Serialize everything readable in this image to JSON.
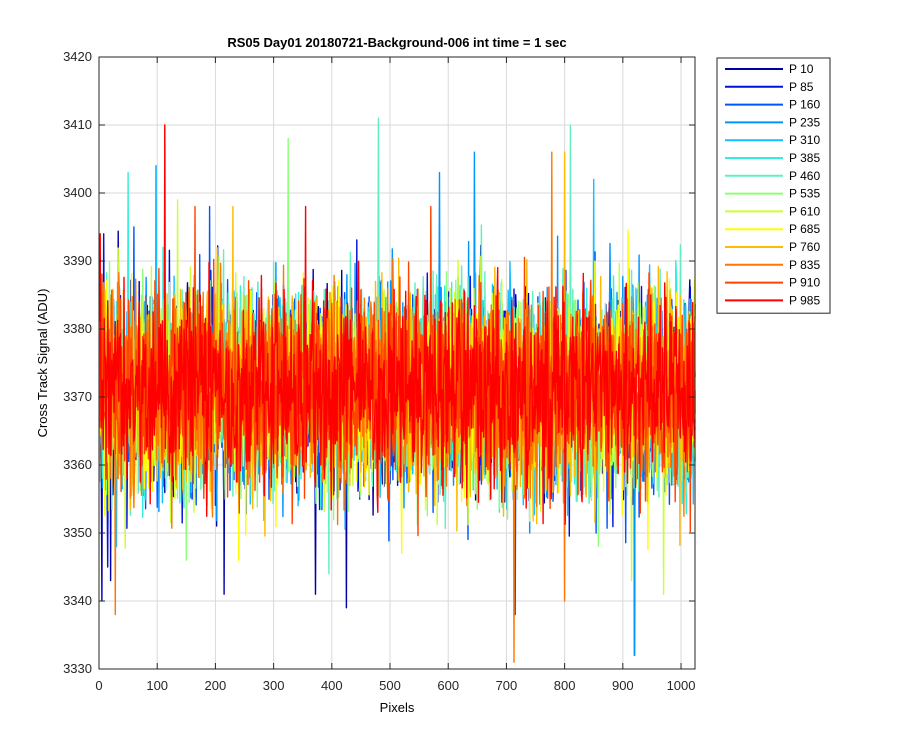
{
  "chart_data": {
    "type": "line",
    "title": "RS05 Day01 20180721-Background-006 int time = 1 sec",
    "xlabel": "Pixels",
    "ylabel": "Cross Track Signal (ADU)",
    "xlim": [
      0,
      1024
    ],
    "ylim": [
      3330,
      3420
    ],
    "xticks": [
      0,
      100,
      200,
      300,
      400,
      500,
      600,
      700,
      800,
      900,
      1000
    ],
    "yticks": [
      3330,
      3340,
      3350,
      3360,
      3370,
      3380,
      3390,
      3400,
      3410,
      3420
    ],
    "grid": true,
    "legend_position": "outside-top-right",
    "x_range": [
      1,
      1024
    ],
    "approx_mean": 3371,
    "approx_std": 7,
    "series": [
      {
        "name": "P 10",
        "color": "#0000a6",
        "notable_points": [
          [
            5,
            3340
          ],
          [
            20,
            3343
          ],
          [
            425,
            3339
          ],
          [
            372,
            3341
          ],
          [
            215,
            3341
          ],
          [
            920,
            3332
          ],
          [
            470,
            3365
          ]
        ]
      },
      {
        "name": "P 85",
        "color": "#0011dd",
        "notable_points": [
          [
            15,
            3345
          ],
          [
            8,
            3394
          ],
          [
            160,
            3355
          ]
        ]
      },
      {
        "name": "P 160",
        "color": "#0055ff",
        "notable_points": [
          [
            715,
            3338
          ],
          [
            60,
            3395
          ],
          [
            190,
            3398
          ]
        ]
      },
      {
        "name": "P 235",
        "color": "#0096ff",
        "notable_points": [
          [
            585,
            3403
          ],
          [
            645,
            3406
          ],
          [
            920,
            3332
          ],
          [
            98,
            3404
          ],
          [
            740,
            3350
          ]
        ]
      },
      {
        "name": "P 310",
        "color": "#14bfff",
        "notable_points": [
          [
            98,
            3404
          ],
          [
            30,
            3348
          ],
          [
            850,
            3402
          ]
        ]
      },
      {
        "name": "P 385",
        "color": "#33eedd",
        "notable_points": [
          [
            50,
            3403
          ],
          [
            110,
            3392
          ]
        ]
      },
      {
        "name": "P 460",
        "color": "#60f0c0",
        "notable_points": [
          [
            480,
            3411
          ],
          [
            810,
            3410
          ],
          [
            395,
            3344
          ]
        ]
      },
      {
        "name": "P 535",
        "color": "#8cff78",
        "notable_points": [
          [
            325,
            3408
          ],
          [
            150,
            3346
          ]
        ]
      },
      {
        "name": "P 610",
        "color": "#ccff33",
        "notable_points": [
          [
            970,
            3341
          ],
          [
            915,
            3343
          ],
          [
            135,
            3399
          ]
        ]
      },
      {
        "name": "P 685",
        "color": "#ffff00",
        "notable_points": [
          [
            240,
            3346
          ],
          [
            520,
            3347
          ]
        ]
      },
      {
        "name": "P 760",
        "color": "#ffbb00",
        "notable_points": [
          [
            800,
            3406
          ],
          [
            230,
            3398
          ]
        ]
      },
      {
        "name": "P 835",
        "color": "#ff7700",
        "notable_points": [
          [
            113,
            3410
          ],
          [
            713,
            3331
          ],
          [
            800,
            3340
          ],
          [
            778,
            3406
          ],
          [
            28,
            3338
          ]
        ]
      },
      {
        "name": "P 910",
        "color": "#ff4400",
        "notable_points": [
          [
            165,
            3398
          ],
          [
            570,
            3398
          ]
        ]
      },
      {
        "name": "P 985",
        "color": "#ff0000",
        "notable_points": [
          [
            113,
            3410
          ],
          [
            2,
            3394
          ],
          [
            355,
            3398
          ]
        ]
      }
    ]
  }
}
